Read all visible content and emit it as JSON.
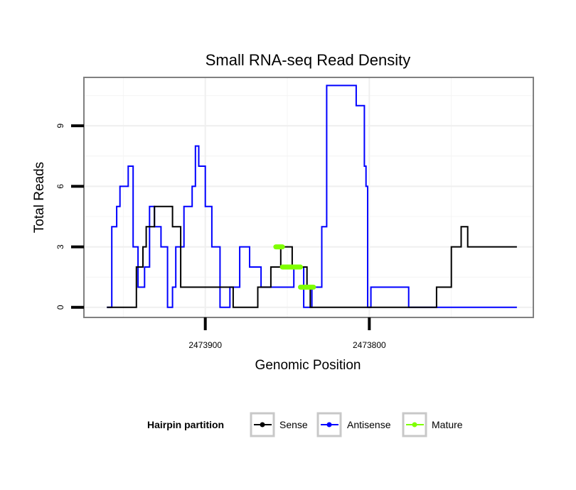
{
  "chart_data": {
    "type": "line",
    "title": "Small RNA-seq Read Density",
    "xlabel": "Genomic Position",
    "ylabel": "Total Reads",
    "x_reversed": true,
    "xlim": [
      2473974,
      2473700
    ],
    "ylim": [
      -0.5,
      11.4
    ],
    "x_ticks": [
      2473900,
      2473800
    ],
    "x_tick_labels": [
      "2473900",
      "2473800"
    ],
    "y_ticks": [
      0,
      3,
      6,
      9
    ],
    "y_tick_labels": [
      "0",
      "3",
      "6",
      "9"
    ],
    "grid": true,
    "legend": {
      "title": "Hairpin partition",
      "position": "bottom",
      "entries": [
        {
          "name": "Sense",
          "color": "#000000"
        },
        {
          "name": "Antisense",
          "color": "#0000ff"
        },
        {
          "name": "Mature",
          "color": "#7fff00"
        }
      ]
    },
    "series": [
      {
        "name": "Antisense",
        "color": "#0000ff",
        "x": [
          2473960,
          2473958,
          2473957,
          2473955,
          2473954,
          2473953,
          2473952,
          2473951,
          2473950,
          2473949,
          2473948,
          2473947,
          2473946,
          2473944,
          2473941,
          2473939,
          2473937,
          2473935,
          2473934,
          2473933,
          2473932,
          2473931,
          2473929,
          2473928,
          2473927,
          2473925,
          2473923,
          2473922,
          2473921,
          2473920,
          2473918,
          2473915,
          2473913,
          2473911,
          2473910,
          2473908,
          2473906,
          2473905,
          2473904,
          2473902,
          2473900,
          2473898,
          2473896,
          2473894,
          2473893,
          2473891,
          2473888,
          2473887,
          2473886,
          2473885,
          2473884,
          2473883,
          2473881,
          2473879,
          2473877,
          2473876,
          2473873,
          2473867,
          2473866,
          2473860,
          2473859,
          2473857,
          2473852,
          2473848,
          2473846,
          2473842,
          2473840,
          2473839,
          2473835,
          2473834,
          2473830,
          2473829,
          2473826,
          2473816,
          2473814,
          2473808,
          2473806,
          2473804,
          2473803,
          2473802,
          2473801,
          2473799,
          2473797,
          2473777,
          2473776,
          2473710
        ],
        "y": [
          0,
          0,
          4,
          4,
          5,
          5,
          6,
          6,
          6,
          6,
          6,
          7,
          7,
          3,
          1,
          1,
          2,
          2,
          5,
          5,
          5,
          4,
          4,
          4,
          3,
          3,
          0,
          0,
          0,
          1,
          3,
          3,
          5,
          5,
          5,
          6,
          8,
          8,
          7,
          7,
          5,
          5,
          3,
          3,
          3,
          0,
          0,
          0,
          0,
          1,
          1,
          1,
          1,
          3,
          3,
          3,
          2,
          2,
          1,
          1,
          1,
          1,
          1,
          1,
          2,
          2,
          0,
          0,
          1,
          1,
          1,
          4,
          11,
          11,
          11,
          10,
          10,
          10,
          7,
          6,
          0,
          1,
          1,
          1,
          0,
          0
        ]
      },
      {
        "name": "Sense",
        "color": "#000000",
        "x": [
          2473960,
          2473952,
          2473943,
          2473942,
          2473939,
          2473938,
          2473937,
          2473936,
          2473935,
          2473931,
          2473929,
          2473925,
          2473924,
          2473920,
          2473919,
          2473918,
          2473917,
          2473915,
          2473913,
          2473883,
          2473876,
          2473874,
          2473868,
          2473866,
          2473865,
          2473864,
          2473860,
          2473858,
          2473856,
          2473854,
          2473849,
          2473847,
          2473845,
          2473841,
          2473840,
          2473838,
          2473837,
          2473836,
          2473835,
          2473826,
          2473799,
          2473780,
          2473767,
          2473759,
          2473758,
          2473755,
          2473750,
          2473747,
          2473745,
          2473744,
          2473742,
          2473740,
          2473738,
          2473735,
          2473732,
          2473730,
          2473729,
          2473728,
          2473727,
          2473725,
          2473718,
          2473710
        ],
        "y": [
          0,
          0,
          0,
          2,
          2,
          3,
          3,
          4,
          4,
          5,
          5,
          5,
          5,
          4,
          4,
          4,
          4,
          1,
          1,
          0,
          0,
          0,
          1,
          1,
          1,
          1,
          2,
          2,
          2,
          3,
          3,
          2,
          2,
          2,
          2,
          1,
          1,
          0,
          0,
          0,
          0,
          0,
          0,
          1,
          1,
          1,
          3,
          3,
          3,
          4,
          4,
          3,
          3,
          3,
          3,
          3,
          3,
          3,
          3,
          3,
          3,
          3
        ]
      },
      {
        "name": "Mature",
        "color": "#7fff00",
        "segments": [
          {
            "x": [
              2473857,
              2473853
            ],
            "y": [
              3,
              3
            ]
          },
          {
            "x": [
              2473853,
              2473842
            ],
            "y": [
              2,
              2
            ]
          },
          {
            "x": [
              2473842,
              2473834
            ],
            "y": [
              1,
              1
            ]
          }
        ]
      }
    ]
  }
}
